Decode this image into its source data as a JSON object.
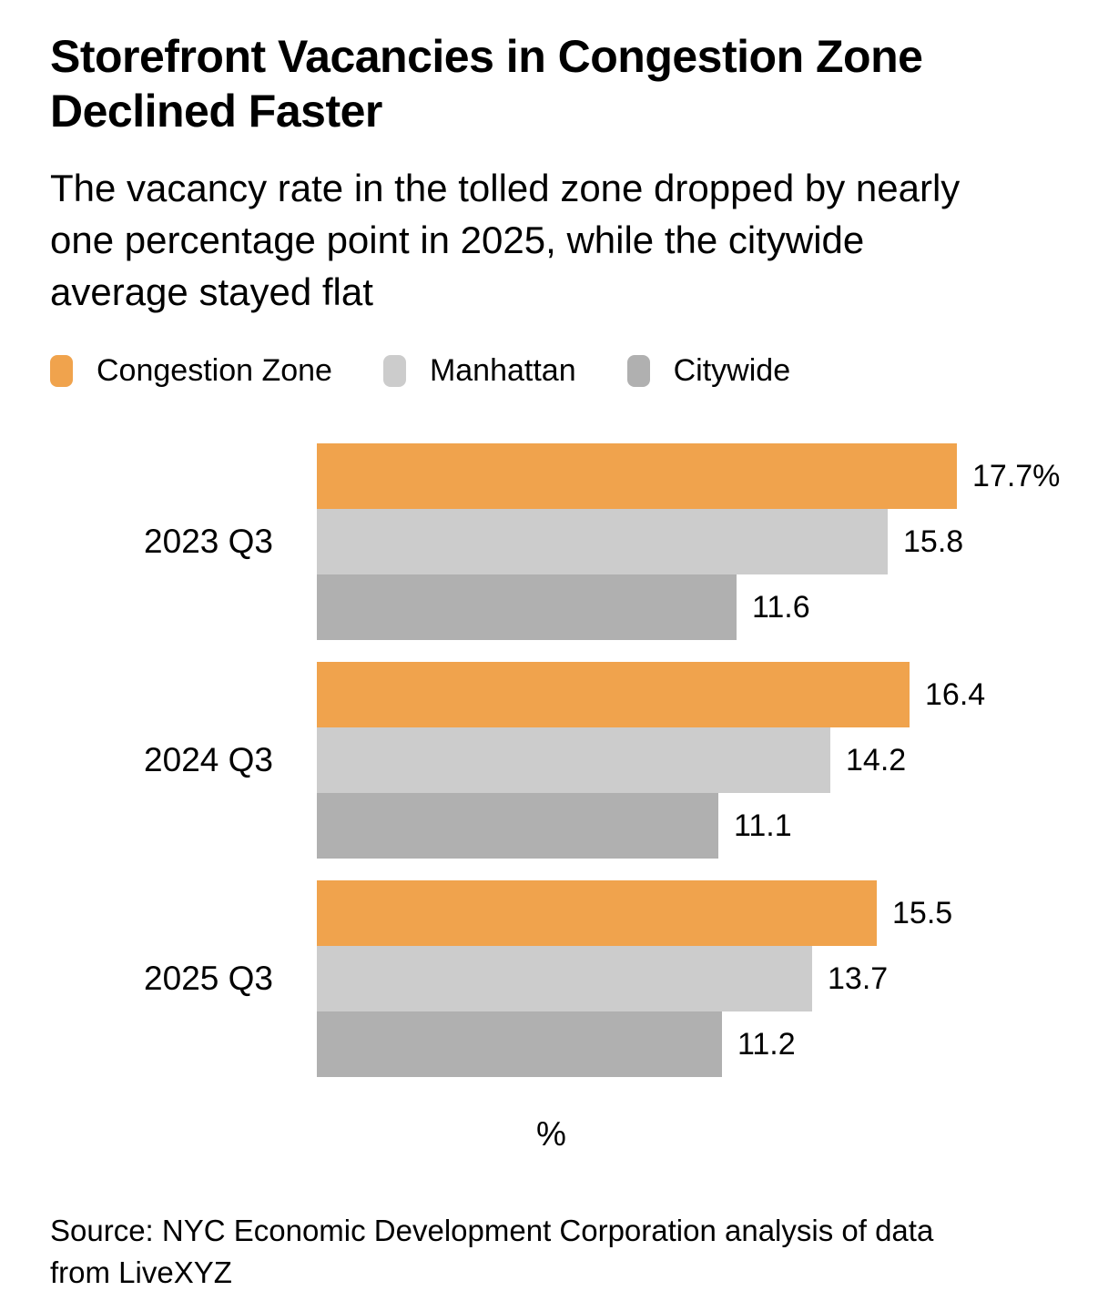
{
  "header": {
    "title": "Storefront Vacancies in Congestion Zone Declined Faster",
    "subtitle": "The vacancy rate in the tolled zone dropped by nearly one percentage point in 2025, while the citywide average stayed flat"
  },
  "legend": [
    {
      "label": "Congestion Zone",
      "color": "#F0A34D"
    },
    {
      "label": "Manhattan",
      "color": "#CCCCCC"
    },
    {
      "label": "Citywide",
      "color": "#B0B0B0"
    }
  ],
  "chart_data": {
    "type": "bar",
    "orientation": "horizontal",
    "title": "Storefront Vacancies in Congestion Zone Declined Faster",
    "categories": [
      "2023 Q3",
      "2024 Q3",
      "2025 Q3"
    ],
    "series": [
      {
        "name": "Congestion Zone",
        "color": "#F0A34D",
        "values": [
          17.7,
          16.4,
          15.5
        ],
        "labels": [
          "17.7%",
          "16.4",
          "15.5"
        ]
      },
      {
        "name": "Manhattan",
        "color": "#CCCCCC",
        "values": [
          15.8,
          14.2,
          13.7
        ],
        "labels": [
          "15.8",
          "14.2",
          "13.7"
        ]
      },
      {
        "name": "Citywide",
        "color": "#B0B0B0",
        "values": [
          11.6,
          11.1,
          11.2
        ],
        "labels": [
          "11.6",
          "11.1",
          "11.2"
        ]
      }
    ],
    "xlabel": "%",
    "xlim": [
      0,
      17.7
    ],
    "value_labels": true,
    "grid": false,
    "legend_position": "top"
  },
  "footer": {
    "source": "Source: NYC Economic Development Corporation analysis of data from LiveXYZ"
  }
}
